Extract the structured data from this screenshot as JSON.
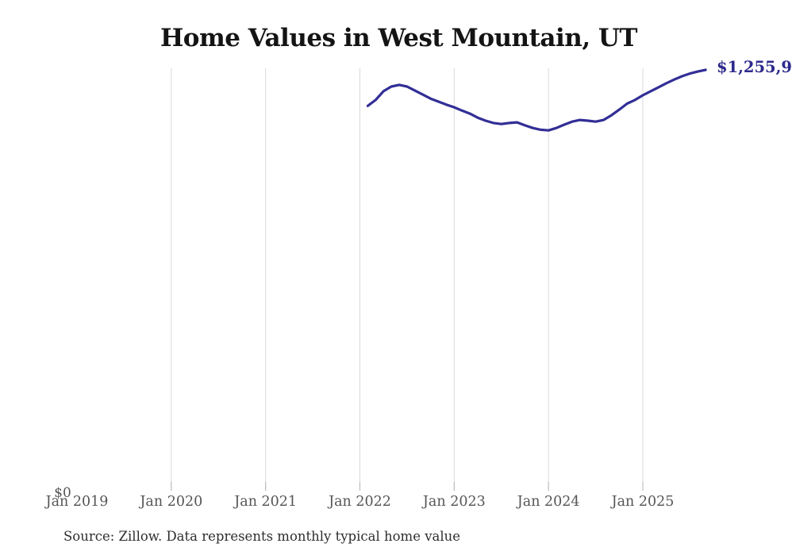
{
  "footer": {
    "source": "Source: Zillow. Data represents monthly typical home value"
  },
  "chart_data": {
    "type": "line",
    "title": "Home Values in West Mountain, UT",
    "y_zero_label": "$0",
    "end_label": "$1,255,9",
    "line_color": "#322e96",
    "end_label_color": "#2d2a8c",
    "gridline_color": "#d9d9d9",
    "tick_stub_color": "#b3b3b3",
    "xlabel": "",
    "ylabel": "",
    "ylim": [
      0,
      1260000
    ],
    "legend": "none",
    "grid": "vertical-only",
    "x_ticks": [
      {
        "label": "Jan 2019",
        "gridline": false
      },
      {
        "label": "Jan 2020",
        "gridline": true
      },
      {
        "label": "Jan 2021",
        "gridline": true
      },
      {
        "label": "Jan 2022",
        "gridline": true
      },
      {
        "label": "Jan 2023",
        "gridline": true
      },
      {
        "label": "Jan 2024",
        "gridline": true
      },
      {
        "label": "Jan 2025",
        "gridline": true
      }
    ],
    "series": [
      {
        "name": "Typical home value",
        "points": [
          {
            "month": "Feb 2022",
            "value": 1148000
          },
          {
            "month": "Mar 2022",
            "value": 1166000
          },
          {
            "month": "Apr 2022",
            "value": 1192000
          },
          {
            "month": "May 2022",
            "value": 1206000
          },
          {
            "month": "Jun 2022",
            "value": 1211000
          },
          {
            "month": "Jul 2022",
            "value": 1206000
          },
          {
            "month": "Aug 2022",
            "value": 1194000
          },
          {
            "month": "Sep 2022",
            "value": 1182000
          },
          {
            "month": "Oct 2022",
            "value": 1170000
          },
          {
            "month": "Nov 2022",
            "value": 1161000
          },
          {
            "month": "Dec 2022",
            "value": 1152000
          },
          {
            "month": "Jan 2023",
            "value": 1144000
          },
          {
            "month": "Feb 2023",
            "value": 1134000
          },
          {
            "month": "Mar 2023",
            "value": 1125000
          },
          {
            "month": "Apr 2023",
            "value": 1113000
          },
          {
            "month": "May 2023",
            "value": 1104000
          },
          {
            "month": "Jun 2023",
            "value": 1097000
          },
          {
            "month": "Jul 2023",
            "value": 1094000
          },
          {
            "month": "Aug 2023",
            "value": 1097000
          },
          {
            "month": "Sep 2023",
            "value": 1099000
          },
          {
            "month": "Oct 2023",
            "value": 1090000
          },
          {
            "month": "Nov 2023",
            "value": 1082000
          },
          {
            "month": "Dec 2023",
            "value": 1077000
          },
          {
            "month": "Jan 2024",
            "value": 1075000
          },
          {
            "month": "Feb 2024",
            "value": 1082000
          },
          {
            "month": "Mar 2024",
            "value": 1092000
          },
          {
            "month": "Apr 2024",
            "value": 1101000
          },
          {
            "month": "May 2024",
            "value": 1106000
          },
          {
            "month": "Jun 2024",
            "value": 1104000
          },
          {
            "month": "Jul 2024",
            "value": 1101000
          },
          {
            "month": "Aug 2024",
            "value": 1106000
          },
          {
            "month": "Sep 2024",
            "value": 1120000
          },
          {
            "month": "Oct 2024",
            "value": 1137000
          },
          {
            "month": "Nov 2024",
            "value": 1155000
          },
          {
            "month": "Dec 2024",
            "value": 1166000
          },
          {
            "month": "Jan 2025",
            "value": 1180000
          },
          {
            "month": "Feb 2025",
            "value": 1192000
          },
          {
            "month": "Mar 2025",
            "value": 1204000
          },
          {
            "month": "Apr 2025",
            "value": 1216000
          },
          {
            "month": "May 2025",
            "value": 1227000
          },
          {
            "month": "Jun 2025",
            "value": 1237000
          },
          {
            "month": "Jul 2025",
            "value": 1245000
          },
          {
            "month": "Aug 2025",
            "value": 1251000
          },
          {
            "month": "Sep 2025",
            "value": 1255900
          }
        ]
      }
    ]
  }
}
